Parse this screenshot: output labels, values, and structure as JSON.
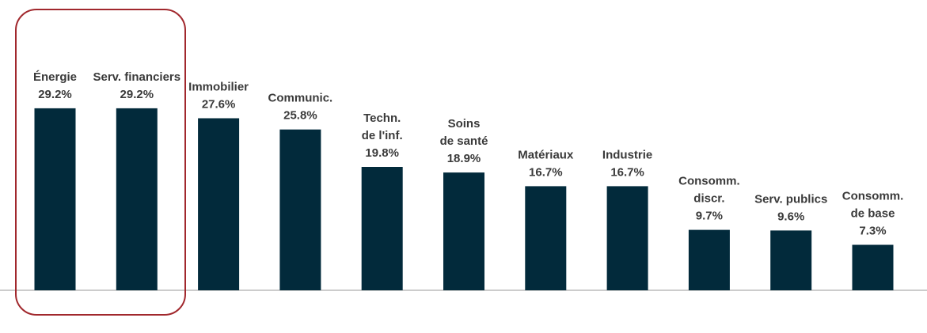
{
  "chart_data": {
    "type": "bar",
    "title": "",
    "xlabel": "",
    "ylabel": "",
    "ylim": [
      0,
      35
    ],
    "grid": false,
    "legend": "none",
    "bar_color": "#022a3b",
    "highlight_color": "#a1282d",
    "highlight_categories": [
      "Énergie",
      "Serv. financiers"
    ],
    "categories": [
      "Énergie",
      "Serv. financiers",
      "Immobilier",
      "Communic.",
      "Techn. de l'inf.",
      "Soins de santé",
      "Matériaux",
      "Industrie",
      "Consomm. discr.",
      "Serv. publics",
      "Consomm. de base"
    ],
    "label_lines": [
      [
        "Énergie"
      ],
      [
        "Serv. financiers"
      ],
      [
        "Immobilier"
      ],
      [
        "Communic."
      ],
      [
        "Techn.",
        "de l'inf."
      ],
      [
        "Soins",
        "de santé"
      ],
      [
        "Matériaux"
      ],
      [
        "Industrie"
      ],
      [
        "Consomm.",
        "discr."
      ],
      [
        "Serv. publics"
      ],
      [
        "Consomm.",
        "de base"
      ]
    ],
    "values": [
      29.2,
      29.2,
      27.6,
      25.8,
      19.8,
      18.9,
      16.7,
      16.7,
      9.7,
      9.6,
      7.3
    ],
    "data_labels": [
      "29.2%",
      "29.2%",
      "27.6%",
      "25.8%",
      "19.8%",
      "18.9%",
      "16.7%",
      "16.7%",
      "9.7%",
      "9.6%",
      "7.3%"
    ]
  }
}
